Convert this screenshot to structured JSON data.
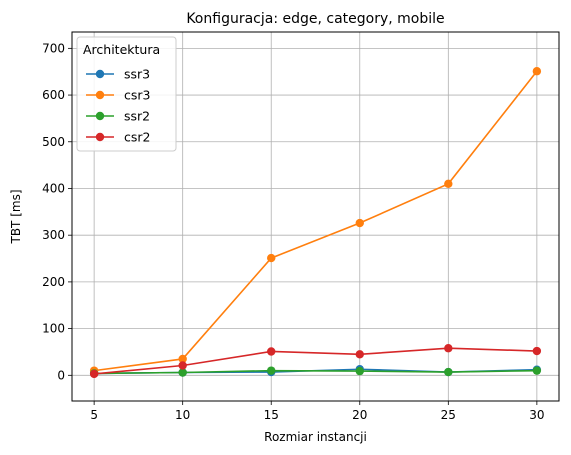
{
  "chart_data": {
    "type": "line",
    "title": "Konfiguracja: edge, category, mobile",
    "xlabel": "Rozmiar instancji",
    "ylabel": "TBT [ms]",
    "x": [
      5,
      10,
      15,
      20,
      25,
      30
    ],
    "xlim": [
      3.75,
      31.25
    ],
    "ylim": [
      -55,
      735
    ],
    "xticks": [
      5,
      10,
      15,
      20,
      25,
      30
    ],
    "yticks": [
      0,
      100,
      200,
      300,
      400,
      500,
      600,
      700
    ],
    "grid": true,
    "legend": {
      "title": "Architektura",
      "placement": "top-left"
    },
    "series": [
      {
        "name": "ssr3",
        "color": "#1f77b4",
        "values": [
          4,
          6,
          7,
          13,
          7,
          12
        ]
      },
      {
        "name": "csr3",
        "color": "#ff7f0e",
        "values": [
          10,
          35,
          251,
          326,
          410,
          651
        ]
      },
      {
        "name": "ssr2",
        "color": "#2ca02c",
        "values": [
          4,
          6,
          10,
          9,
          7,
          10
        ]
      },
      {
        "name": "csr2",
        "color": "#d62728",
        "values": [
          3,
          21,
          51,
          45,
          58,
          52
        ]
      }
    ]
  }
}
